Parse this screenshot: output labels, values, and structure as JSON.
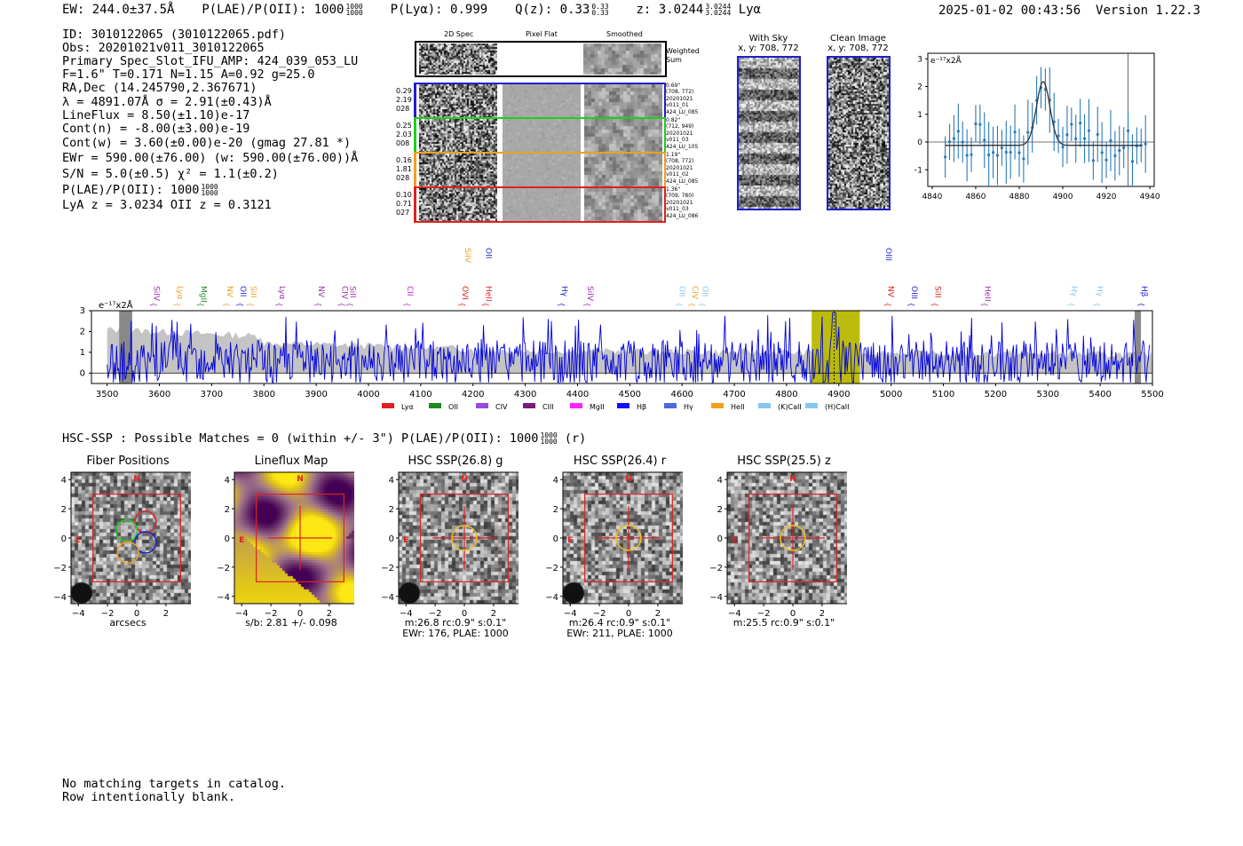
{
  "header": {
    "ew": "EW: 244.0±37.5Å",
    "plae": "P(LAE)/P(OII): 1000",
    "plae_hi": "1000",
    "plae_lo": "1000",
    "plya": "P(Lyα): 0.999",
    "qz": "Q(z): 0.33",
    "qz_hi": "0.33",
    "qz_lo": "0.33",
    "z": "z: 3.0244",
    "z_hi": "3.0244",
    "z_lo": "3.0244",
    "z_line": "Lyα",
    "datetime": "2025-01-02 00:43:56",
    "version": "Version 1.22.3"
  },
  "info": {
    "id": "ID: 3010122065 (3010122065.pdf)",
    "obs": "Obs: 20201021v011_3010122065",
    "primary": "Primary Spec_Slot_IFU_AMP: 424_039_053_LU",
    "fitline": "F=1.6\"  T=0.171  N=1.15  A=0.92  g=25.0",
    "radec": "RA,Dec (14.245790,2.367671)",
    "lambda": "λ = 4891.07Å   σ = 2.91(±0.43)Å",
    "lineflux": "LineFlux = 8.50(±1.10)e-17",
    "contn": "Cont(n) = -8.00(±3.00)e-19",
    "contw": "Cont(w) = 3.60(±0.00)e-20 (gmag 27.81 *)",
    "ewr": "EWr = 590.00(±76.00) (w: 590.00(±76.00))Å",
    "sn": "S/N = 5.0(±0.5)  χ² = 1.1(±0.2)",
    "plae": "P(LAE)/P(OII): 1000",
    "plae_hi": "1000",
    "plae_lo": "1000",
    "lyaz": "LyA z = 3.0234  OII z = 0.3121"
  },
  "cutouts": {
    "col_2d": "2D Spec",
    "col_flat": "Pixel Flat",
    "col_smooth": "Smoothed",
    "weighted_a": "Weighted",
    "weighted_b": "Sum",
    "rows": [
      {
        "w1": "0.29",
        "w2": "2.19",
        "w3": "028",
        "d1": "0.69\"",
        "d2": "(708, 772)",
        "d3": "20201021",
        "d4": "v011_01",
        "d5": "424_LU_085",
        "color": "#1f1fcc"
      },
      {
        "w1": "0.25",
        "w2": "2.03",
        "w3": "008",
        "d1": "0.82\"",
        "d2": "(712, 949)",
        "d3": "20201021",
        "d4": "v011_03",
        "d5": "424_LU_105",
        "color": "#22cc22"
      },
      {
        "w1": "0.16",
        "w2": "1.81",
        "w3": "028",
        "d1": "1.19\"",
        "d2": "(708, 772)",
        "d3": "20201021",
        "d4": "v011_02",
        "d5": "424_LU_085",
        "color": "#f0a020"
      },
      {
        "w1": "0.10",
        "w2": "0.71",
        "w3": "027",
        "d1": "1.36\"",
        "d2": "(709, 780)",
        "d3": "20201021",
        "d4": "v011_03",
        "d5": "424_LU_086",
        "color": "#e02020"
      }
    ],
    "sky_title": "With Sky",
    "sky_xy": "x, y: 708, 772",
    "clean_title": "Clean Image",
    "clean_xy": "x, y: 708, 772"
  },
  "zoom_chart": {
    "unit": "e⁻¹⁷x2Å",
    "yticks": [
      "3",
      "2",
      "1",
      "0",
      "−1"
    ],
    "xticks": [
      "4840",
      "4860",
      "4880",
      "4900",
      "4920",
      "4940"
    ]
  },
  "spectrum_chart": {
    "unit": "e⁻¹⁷x2Å",
    "yticks": [
      "3",
      "2",
      "1",
      "0"
    ],
    "xticks": [
      "3500",
      "3600",
      "3700",
      "3800",
      "3900",
      "4000",
      "4100",
      "4200",
      "4300",
      "4400",
      "4500",
      "4600",
      "4700",
      "4800",
      "4900",
      "5000",
      "5100",
      "5200",
      "5300",
      "5400",
      "5500"
    ],
    "lines_low": [
      {
        "label": "SiIV",
        "w": 3590,
        "color": "#9a2ea8"
      },
      {
        "label": "Lyα",
        "w": 3635,
        "color": "#f0a020"
      },
      {
        "label": "MgII",
        "w": 3680,
        "color": "#1f8a1f"
      },
      {
        "label": "NV",
        "w": 3730,
        "color": "#f0a020"
      },
      {
        "label": "OII",
        "w": 3755,
        "color": "#1f1fcc"
      },
      {
        "label": "SiII",
        "w": 3775,
        "color": "#f0a020"
      },
      {
        "label": "Lyα",
        "w": 3830,
        "color": "#9a2ea8"
      },
      {
        "label": "NV",
        "w": 3905,
        "color": "#9a2ea8"
      },
      {
        "label": "CIV",
        "w": 3950,
        "color": "#9a2ea8"
      },
      {
        "label": "SiII",
        "w": 3965,
        "color": "#9a2ea8"
      },
      {
        "label": "CII",
        "w": 4075,
        "color": "#cc22cc"
      },
      {
        "label": "OVI",
        "w": 4180,
        "color": "#e02020"
      },
      {
        "label": "HeII",
        "w": 4225,
        "color": "#e02020"
      },
      {
        "label": "Hγ",
        "w": 4370,
        "color": "#1f1fcc"
      },
      {
        "label": "SiIV",
        "w": 4420,
        "color": "#9a2ea8"
      },
      {
        "label": "OII",
        "w": 4595,
        "color": "#87c8f0"
      },
      {
        "label": "CIV",
        "w": 4620,
        "color": "#f0a020"
      },
      {
        "label": "OII",
        "w": 4640,
        "color": "#87c8f0"
      },
      {
        "label": "NV",
        "w": 4995,
        "color": "#e02020"
      },
      {
        "label": "OIII",
        "w": 5040,
        "color": "#1f1fcc"
      },
      {
        "label": "SiII",
        "w": 5085,
        "color": "#e02020"
      },
      {
        "label": "HeII",
        "w": 5180,
        "color": "#9a2ea8"
      },
      {
        "label": "Hγ",
        "w": 5345,
        "color": "#87c8f0"
      },
      {
        "label": "Hγ",
        "w": 5395,
        "color": "#87c8f0"
      },
      {
        "label": "Hβ",
        "w": 5480,
        "color": "#1f1fcc"
      }
    ],
    "lines_high": [
      {
        "label": "SiIV",
        "w": 4185,
        "color": "#f0a020"
      },
      {
        "label": "OII",
        "w": 4225,
        "color": "#1f1fcc"
      },
      {
        "label": "OIII",
        "w": 4990,
        "color": "#1f1fcc"
      }
    ],
    "legend": [
      {
        "label": "Lyα",
        "color": "#e02020"
      },
      {
        "label": "OII",
        "color": "#1f8a1f"
      },
      {
        "label": "CIV",
        "color": "#9a4ae0"
      },
      {
        "label": "CIII",
        "color": "#7a1a7a"
      },
      {
        "label": "MgII",
        "color": "#ff22ff"
      },
      {
        "label": "Hβ",
        "color": "#1010ff"
      },
      {
        "label": "Hγ",
        "color": "#4a6ae0"
      },
      {
        "label": "HeII",
        "color": "#f0a020"
      },
      {
        "label": "(K)CaII",
        "color": "#87c8f0"
      },
      {
        "label": "(H)CaII",
        "color": "#87c8f0"
      }
    ]
  },
  "hsc": {
    "header": "HSC-SSP : Possible Matches = 0 (within +/- 3\")  P(LAE)/P(OII): 1000",
    "header_hi": "1000",
    "header_lo": "1000",
    "header_tail": "(r)",
    "panels": [
      {
        "title": "Fiber Positions",
        "cap1": "arcsecs",
        "cap2": ""
      },
      {
        "title": "Lineflux Map",
        "cap1": "s/b: 2.81 +/- 0.098",
        "cap2": ""
      },
      {
        "title": "HSC SSP(26.8) g",
        "cap1": "m:26.8 rc:0.9\"  s:0.1\"",
        "cap2": "EWr: 176, PLAE: 1000"
      },
      {
        "title": "HSC SSP(26.4) r",
        "cap1": "m:26.4 rc:0.9\"  s:0.1\"",
        "cap2": "EWr: 211, PLAE: 1000"
      },
      {
        "title": "HSC SSP(25.5) z",
        "cap1": "m:25.5 rc:0.9\"  s:0.1\"",
        "cap2": ""
      }
    ],
    "yticks": [
      "4",
      "2",
      "0",
      "−2",
      "−4"
    ],
    "xticks": [
      "−4",
      "−2",
      "0",
      "2",
      "4"
    ],
    "n_label": "N",
    "e_label": "E"
  },
  "footer": {
    "line1": "No matching targets in catalog.",
    "line2": "Row intentionally blank."
  }
}
